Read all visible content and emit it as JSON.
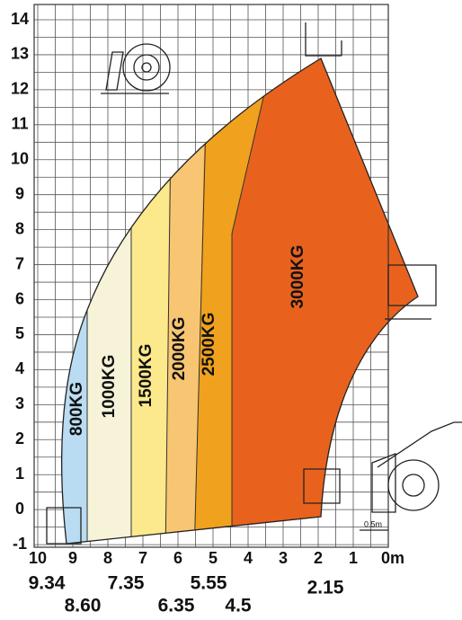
{
  "y_labels": [
    "14",
    "13",
    "12",
    "11",
    "10",
    "9",
    "8",
    "7",
    "6",
    "5",
    "4",
    "3",
    "2",
    "1",
    "0",
    "-1"
  ],
  "x_labels": [
    "10",
    "9",
    "8",
    "7",
    "6",
    "5",
    "4",
    "3",
    "2",
    "1",
    "0m"
  ],
  "reach_labels": [
    "9.34",
    "8.60",
    "7.35",
    "6.35",
    "5.55",
    "4.5",
    "2.15"
  ],
  "zones": [
    "800KG",
    "1000KG",
    "1500KG",
    "2000KG",
    "2500KG",
    "3000KG"
  ],
  "scale_note": "0.5m"
}
